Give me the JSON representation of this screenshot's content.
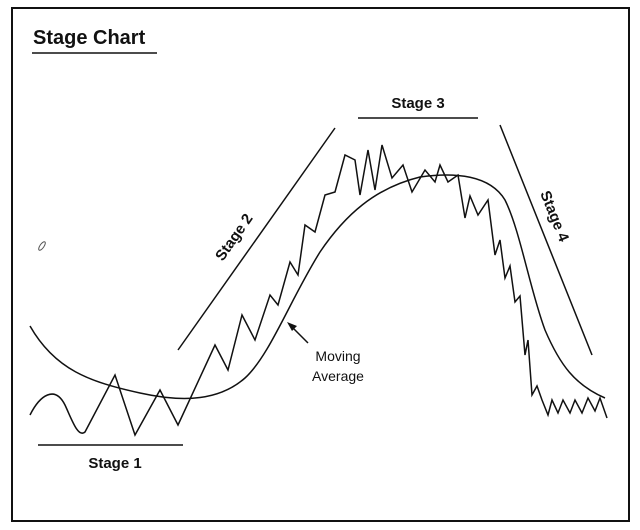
{
  "title": "Stage Chart",
  "stages": [
    {
      "label": "Stage 1"
    },
    {
      "label": "Stage 2"
    },
    {
      "label": "Stage 3"
    },
    {
      "label": "Stage 4"
    }
  ],
  "annotation": {
    "lines": [
      "Moving",
      "Average"
    ]
  }
}
